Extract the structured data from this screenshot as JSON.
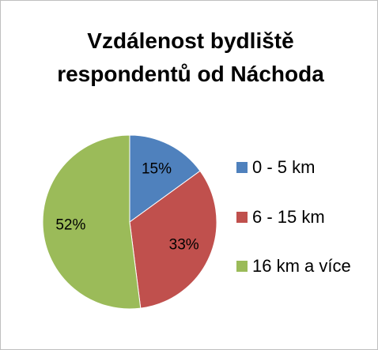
{
  "chart_data": {
    "type": "pie",
    "title": "Vzdálenost bydliště respondentů od Náchoda",
    "categories": [
      "0 - 5 km",
      "6 - 15 km",
      "16 km a více"
    ],
    "values": [
      15,
      33,
      52
    ],
    "value_labels": [
      "15%",
      "33%",
      "52%"
    ],
    "colors": [
      "#4f81bd",
      "#c0504d",
      "#9bbb59"
    ],
    "legend": "right"
  }
}
